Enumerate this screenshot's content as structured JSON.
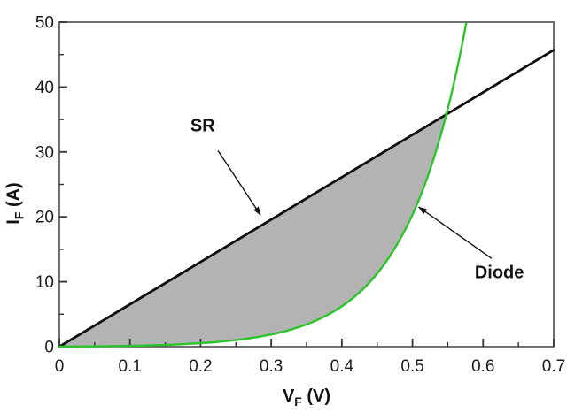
{
  "figure": {
    "background": "#ffffff",
    "border_color": "#4d4d4d",
    "tick_color": "#333333",
    "text_color": "#1a1a1a"
  },
  "chart_data": {
    "type": "line",
    "title": "",
    "xlabel": {
      "main": "V",
      "sub": "F",
      "rest": " (V)"
    },
    "ylabel": {
      "main": "I",
      "sub": "F",
      "rest": " (A)"
    },
    "xlim": [
      0,
      0.7
    ],
    "ylim": [
      0,
      50
    ],
    "grid": false,
    "legend_position": "none",
    "x_major_ticks": [
      0,
      0.1,
      0.2,
      0.3,
      0.4,
      0.5,
      0.6,
      0.7
    ],
    "x_tick_labels": [
      "0",
      "0.1",
      "0.2",
      "0.3",
      "0.4",
      "0.5",
      "0.6",
      "0.7"
    ],
    "x_minor_ticks": [
      0.05,
      0.15,
      0.25,
      0.35,
      0.45,
      0.55,
      0.65
    ],
    "y_major_ticks": [
      0,
      10,
      20,
      30,
      40,
      50
    ],
    "y_tick_labels": [
      "0",
      "10",
      "20",
      "30",
      "40",
      "50"
    ],
    "y_minor_ticks": [
      5,
      15,
      25,
      35,
      45
    ],
    "series": [
      {
        "name": "SR",
        "color": "#0f0f0f",
        "width": 2.8,
        "x": [
          0,
          0.7
        ],
        "y": [
          0,
          45.7
        ]
      },
      {
        "name": "Diode",
        "color": "#2bc42b",
        "width": 2.4,
        "x": [
          0,
          0.024,
          0.048,
          0.072,
          0.096,
          0.12,
          0.144,
          0.168,
          0.192,
          0.216,
          0.24,
          0.264,
          0.288,
          0.312,
          0.336,
          0.36,
          0.384,
          0.408,
          0.432,
          0.456,
          0.48,
          0.504,
          0.528,
          0.552,
          0.576
        ],
        "y": [
          0,
          0.02,
          0.04,
          0.08,
          0.12,
          0.18,
          0.25,
          0.35,
          0.49,
          0.66,
          0.9,
          1.21,
          1.63,
          2.17,
          2.9,
          3.87,
          5.15,
          6.84,
          9.09,
          12.1,
          16.1,
          21.3,
          28.3,
          37.5,
          49.8
        ]
      }
    ],
    "intersection": {
      "x": 0.548,
      "y": 35.8
    },
    "fill_between": {
      "upper": "SR",
      "lower": "Diode",
      "color": "#b3b3b3",
      "from_x": 0
    },
    "annotations": [
      {
        "label": "SR",
        "text_x": 0.203,
        "text_y": 33.9,
        "arrow": {
          "x1": 0.2246,
          "y1": 30.2,
          "x2": 0.2847,
          "y2": 20.3
        }
      },
      {
        "label": "Diode",
        "text_x": 0.623,
        "text_y": 11.3,
        "arrow": {
          "x1": 0.612,
          "y1": 13.6,
          "x2": 0.509,
          "y2": 21.5
        }
      }
    ]
  }
}
